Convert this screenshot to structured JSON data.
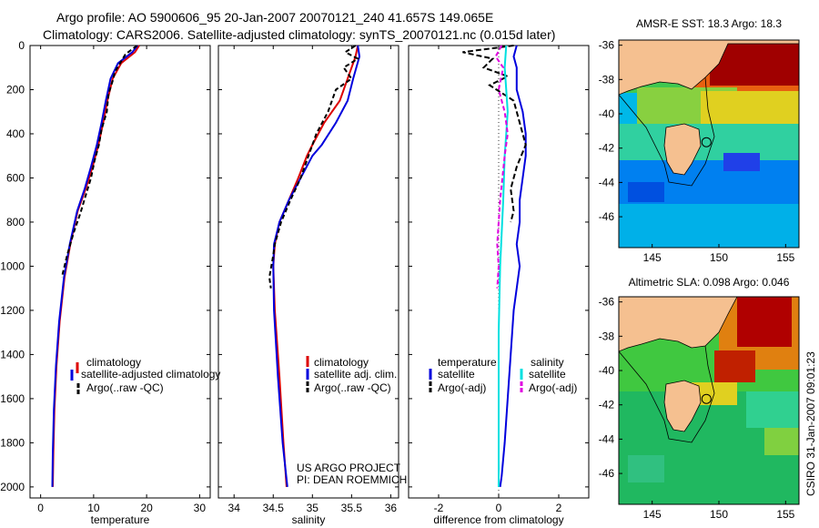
{
  "title_line1": "Argo profile: AO 5900606_95 20-Jan-2007 20070121_240 41.657S 149.065E",
  "title_line2": "Climatology: CARS2006. Satellite-adjusted climatology: synTS_20070121.nc (0.015d later)",
  "credit_line1": "US ARGO PROJECT",
  "credit_line2": "PI: DEAN ROEMMICH",
  "side_stamp": "CSIRO 31-Jan-2007 09:01:23",
  "colors": {
    "climatology": "#dd0000",
    "satellite": "#0000dd",
    "argo": "#000000",
    "sat_salinity": "#00e0e0",
    "argo_salinity": "#e000e0",
    "land": "#f5c090"
  },
  "chart_data": [
    {
      "type": "line",
      "id": "temperature",
      "xlabel": "temperature",
      "xlim": [
        -2,
        32
      ],
      "xticks": [
        0,
        10,
        20,
        30
      ],
      "ylim": [
        0,
        2050
      ],
      "yticks": [
        0,
        200,
        400,
        600,
        800,
        1000,
        1200,
        1400,
        1600,
        1800,
        2000
      ],
      "legend": [
        "climatology",
        "satellite-adjusted climatology",
        "Argo(..raw -QC)"
      ],
      "series": [
        {
          "name": "climatology",
          "color": "#dd0000",
          "dash": "",
          "x": [
            18.6,
            17.8,
            15.2,
            13.6,
            12.6,
            11.8,
            10.9,
            9.8,
            8.5,
            7.0,
            5.6,
            4.5,
            3.6,
            3.0,
            2.6,
            2.4,
            2.3
          ],
          "y": [
            0,
            30,
            80,
            150,
            250,
            350,
            450,
            550,
            650,
            750,
            900,
            1050,
            1250,
            1450,
            1650,
            1850,
            2000
          ]
        },
        {
          "name": "satellite-adjusted climatology",
          "color": "#0000dd",
          "dash": "",
          "x": [
            18.3,
            17.3,
            14.6,
            13.2,
            12.3,
            11.5,
            10.6,
            9.5,
            8.3,
            6.9,
            5.5,
            4.4,
            3.5,
            2.9,
            2.5,
            2.3,
            2.2
          ],
          "y": [
            0,
            30,
            80,
            150,
            250,
            350,
            450,
            550,
            650,
            750,
            900,
            1050,
            1250,
            1450,
            1650,
            1850,
            2000
          ]
        },
        {
          "name": "Argo(..raw -QC)",
          "color": "#000000",
          "dash": "5,3",
          "x": [
            18.2,
            16.0,
            15.0,
            14.0,
            13.6,
            12.8,
            12.5,
            11.5,
            11.0,
            10.2,
            9.5,
            8.5,
            7.5,
            6.2,
            5.0,
            4.0
          ],
          "y": [
            0,
            40,
            80,
            120,
            160,
            220,
            300,
            380,
            450,
            520,
            600,
            680,
            760,
            850,
            950,
            1050
          ]
        }
      ]
    },
    {
      "type": "line",
      "id": "salinity",
      "xlabel": "salinity",
      "xlim": [
        33.8,
        36.1
      ],
      "xticks": [
        34,
        34.5,
        35,
        35.5,
        36
      ],
      "ylim": [
        0,
        2050
      ],
      "legend": [
        "climatology",
        "satellite adj. clim.",
        "Argo(..raw -QC)"
      ],
      "series": [
        {
          "name": "climatology",
          "color": "#dd0000",
          "dash": "",
          "x": [
            35.58,
            35.55,
            35.45,
            35.35,
            35.15,
            35.0,
            34.93,
            34.82,
            34.7,
            34.58,
            34.52,
            34.5,
            34.52,
            34.58,
            34.63,
            34.67
          ],
          "y": [
            0,
            50,
            150,
            250,
            350,
            450,
            500,
            600,
            700,
            800,
            900,
            1000,
            1200,
            1500,
            1800,
            2000
          ]
        },
        {
          "name": "satellite adj. clim.",
          "color": "#0000dd",
          "dash": "",
          "x": [
            35.58,
            35.6,
            35.52,
            35.45,
            35.3,
            35.12,
            35.0,
            34.85,
            34.7,
            34.58,
            34.51,
            34.5,
            34.51,
            34.56,
            34.62,
            34.68
          ],
          "y": [
            0,
            50,
            150,
            250,
            350,
            450,
            500,
            600,
            700,
            800,
            900,
            1000,
            1200,
            1500,
            1800,
            2000
          ]
        },
        {
          "name": "Argo(..raw -QC)",
          "color": "#000000",
          "dash": "5,3",
          "x": [
            35.55,
            35.42,
            35.58,
            35.4,
            35.5,
            35.3,
            35.2,
            35.05,
            34.95,
            34.85,
            34.72,
            34.6,
            34.52,
            34.5,
            34.45,
            34.47
          ],
          "y": [
            0,
            30,
            60,
            100,
            150,
            200,
            300,
            400,
            500,
            600,
            700,
            800,
            900,
            950,
            1050,
            1100
          ]
        }
      ]
    },
    {
      "type": "line",
      "id": "difference",
      "xlabel": "difference from climatology",
      "xlim": [
        -3,
        3
      ],
      "xticks": [
        -2,
        0,
        2
      ],
      "ylim": [
        0,
        2050
      ],
      "legend_left_title": "temperature",
      "legend_right_title": "salinity",
      "legend_left": [
        "satellite",
        "Argo(-adj)"
      ],
      "legend_right": [
        "satellite",
        "Argo(-adj)"
      ],
      "series": [
        {
          "name": "temperature satellite",
          "color": "#0000dd",
          "dash": "",
          "x": [
            0.6,
            0.5,
            0.6,
            0.6,
            0.8,
            0.9,
            0.9,
            0.8,
            0.7,
            0.7,
            0.6,
            0.7,
            0.6,
            0.5,
            0.4,
            0.3,
            0.2,
            0.1,
            0.05
          ],
          "y": [
            0,
            50,
            100,
            200,
            300,
            400,
            500,
            600,
            700,
            800,
            900,
            1000,
            1100,
            1200,
            1400,
            1600,
            1800,
            1950,
            2000
          ]
        },
        {
          "name": "temperature Argo(-adj)",
          "color": "#000000",
          "dash": "6,3",
          "x": [
            0.5,
            -1.2,
            -0.2,
            -0.5,
            0.3,
            -0.3,
            0.5,
            0.7,
            0.9,
            0.6,
            0.4,
            0.5,
            0.4
          ],
          "y": [
            0,
            30,
            60,
            100,
            140,
            180,
            250,
            350,
            450,
            550,
            650,
            750,
            800
          ]
        },
        {
          "name": "salinity satellite",
          "color": "#00e0e0",
          "dash": "",
          "x": [
            0.25,
            0.2,
            0.25,
            0.3,
            0.25,
            0.2,
            0.15,
            0.05,
            0.0,
            0.0,
            0.0
          ],
          "y": [
            0,
            100,
            200,
            300,
            400,
            500,
            700,
            1000,
            1300,
            1700,
            2000
          ]
        },
        {
          "name": "salinity Argo(-adj)",
          "color": "#e000e0",
          "dash": "5,3",
          "x": [
            0.1,
            -0.1,
            0.15,
            0.0,
            0.2,
            0.3,
            0.2,
            0.05,
            -0.05,
            0.0,
            -0.05
          ],
          "y": [
            0,
            50,
            100,
            200,
            300,
            400,
            500,
            700,
            900,
            1000,
            1100
          ]
        }
      ]
    },
    {
      "type": "heatmap",
      "id": "sst_map",
      "title": "AMSR-E SST: 18.3 Argo: 18.3",
      "xlim": [
        142.5,
        156
      ],
      "ylim": [
        -47.8,
        -35.7
      ],
      "xticks": [
        145,
        150,
        155
      ],
      "yticks": [
        -36,
        -38,
        -40,
        -42,
        -44,
        -46
      ],
      "marker": {
        "lon": 149.065,
        "lat": -41.657
      }
    },
    {
      "type": "heatmap",
      "id": "sla_map",
      "title": "Altimetric SLA: 0.098 Argo: 0.046",
      "xlim": [
        142.5,
        156
      ],
      "ylim": [
        -47.8,
        -35.7
      ],
      "xticks": [
        145,
        150,
        155
      ],
      "yticks": [
        -36,
        -38,
        -40,
        -42,
        -44,
        -46
      ],
      "marker": {
        "lon": 149.065,
        "lat": -41.657
      }
    }
  ]
}
